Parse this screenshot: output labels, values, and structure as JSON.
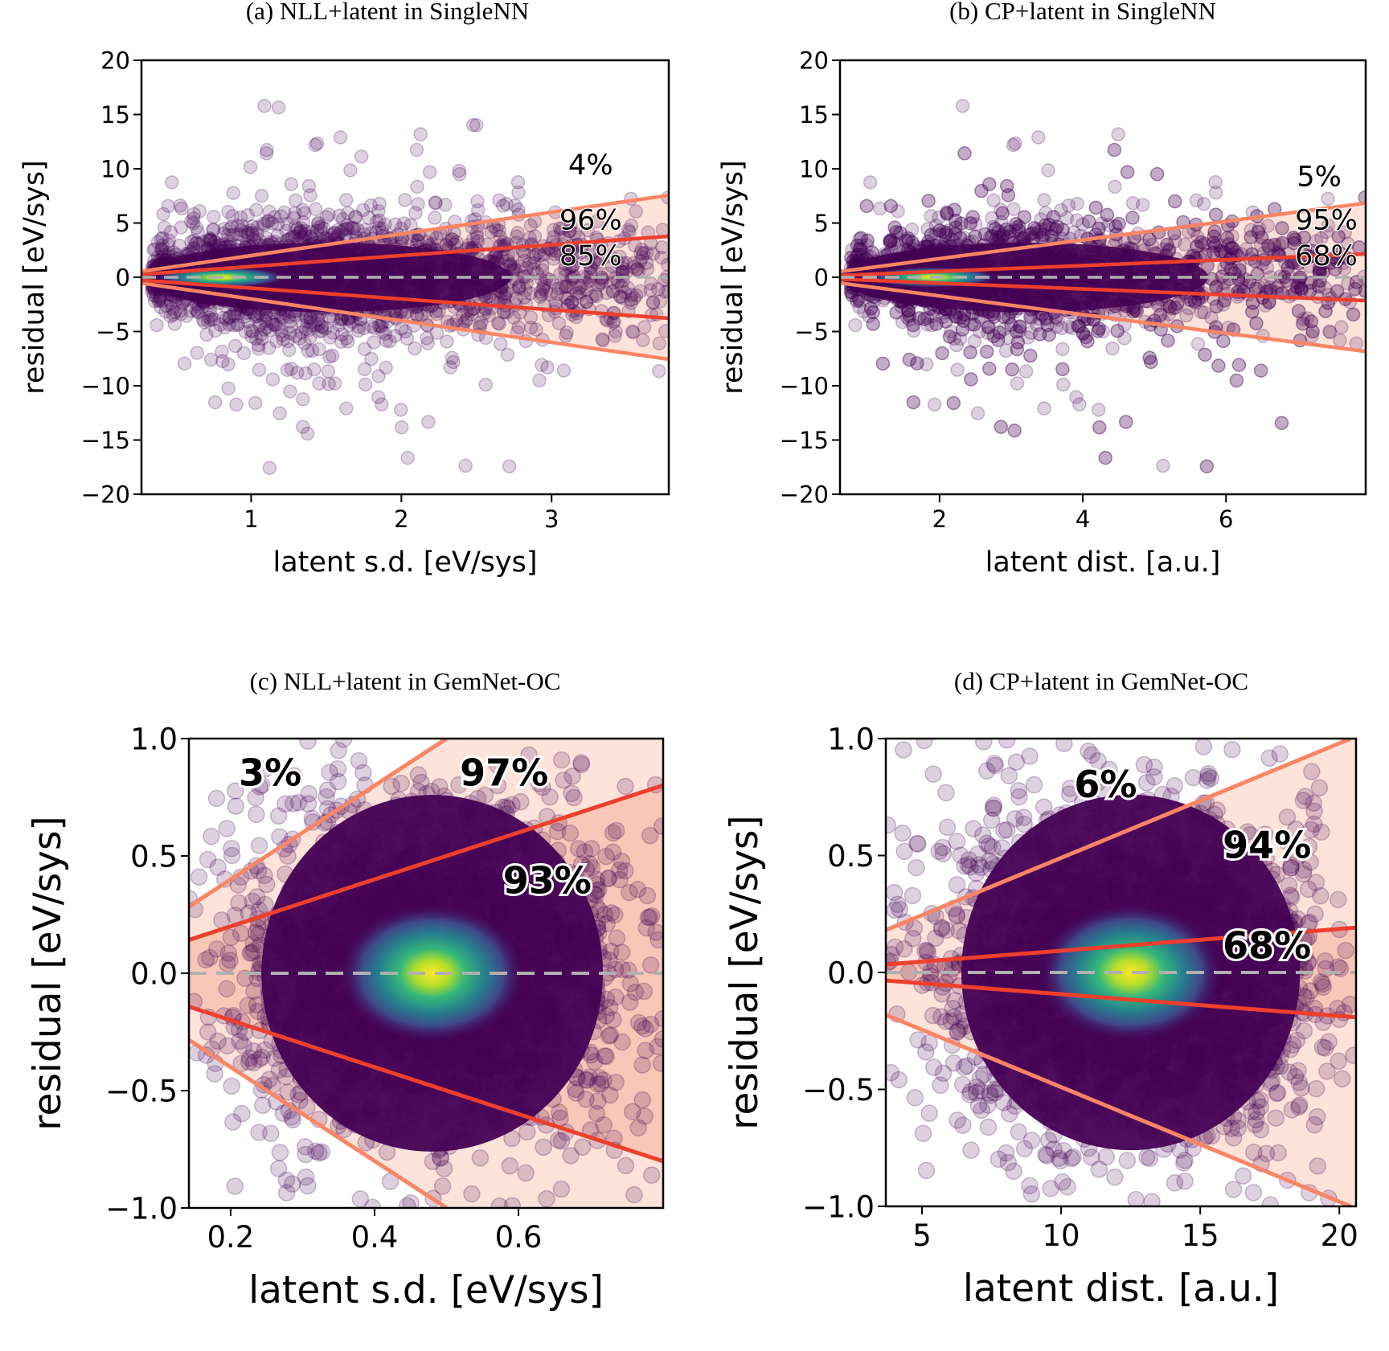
{
  "colors": {
    "outer_band": "#fa8564",
    "inner_band": "#ee3f2c",
    "outer_fill": "#fde3da",
    "inner_fill": "#f8bfae",
    "points": "#440154",
    "zero_line": "#b0b0b0"
  },
  "chart_data": [
    {
      "type": "scatter",
      "title": "(a) NLL+latent in SingleNN",
      "xlabel": "latent s.d. [eV/sys]",
      "ylabel": "residual [eV/sys]",
      "xlim": [
        0.27,
        3.78
      ],
      "ylim": [
        -20,
        20
      ],
      "xticks": [
        1,
        2,
        3
      ],
      "yticks": [
        20,
        15,
        10,
        5,
        0,
        -5,
        -10,
        -15,
        -20
      ],
      "ytick_labels": [
        "20",
        "15",
        "10",
        "5",
        "0",
        "−5",
        "−10",
        "−15",
        "−20"
      ],
      "density_peak_x": 0.8,
      "bands": {
        "outer_slope": 2.0,
        "inner_slope": 1.0
      },
      "annotations": [
        {
          "text": "4%",
          "role": "outside",
          "x": 3.26,
          "y": 9.5
        },
        {
          "text": "96%",
          "role": "outer",
          "x": 3.26,
          "y": 4.4
        },
        {
          "text": "85%",
          "role": "inner",
          "x": 3.26,
          "y": 1.1
        }
      ]
    },
    {
      "type": "scatter",
      "title": "(b) CP+latent in SingleNN",
      "xlabel": "latent dist. [a.u.]",
      "ylabel": "residual [eV/sys]",
      "xlim": [
        0.61,
        7.95
      ],
      "ylim": [
        -20,
        20
      ],
      "xticks": [
        2,
        4,
        6
      ],
      "yticks": [
        20,
        15,
        10,
        5,
        0,
        -5,
        -10,
        -15,
        -20
      ],
      "ytick_labels": [
        "20",
        "15",
        "10",
        "5",
        "0",
        "−5",
        "−10",
        "−15",
        "−20"
      ],
      "density_peak_x": 1.9,
      "bands": {
        "outer_slope": 0.86,
        "inner_slope": 0.27
      },
      "annotations": [
        {
          "text": "5%",
          "role": "outside",
          "x": 7.3,
          "y": 8.4
        },
        {
          "text": "95%",
          "role": "outer",
          "x": 7.4,
          "y": 4.4
        },
        {
          "text": "68%",
          "role": "inner",
          "x": 7.4,
          "y": 1.1
        }
      ]
    },
    {
      "type": "scatter",
      "title": "(c) NLL+latent in GemNet-OC",
      "xlabel": "latent s.d. [eV/sys]",
      "ylabel": "residual [eV/sys]",
      "xlim": [
        0.142,
        0.801
      ],
      "ylim": [
        -1.0,
        1.0
      ],
      "xticks": [
        0.2,
        0.4,
        0.6
      ],
      "xtick_labels": [
        "0.2",
        "0.4",
        "0.6"
      ],
      "yticks": [
        1.0,
        0.5,
        0.0,
        -0.5,
        -1.0
      ],
      "ytick_labels": [
        "1.0",
        "0.5",
        "0.0",
        "−0.5",
        "−1.0"
      ],
      "density_peak_x": 0.48,
      "bands": {
        "outer_slope": 2.0,
        "inner_slope": 1.0
      },
      "annotations": [
        {
          "text": "3%",
          "role": "outside",
          "x": 0.255,
          "y": 0.8
        },
        {
          "text": "97%",
          "role": "outer",
          "x": 0.58,
          "y": 0.8
        },
        {
          "text": "93%",
          "role": "inner",
          "x": 0.64,
          "y": 0.34
        }
      ]
    },
    {
      "type": "scatter",
      "title": "(d) CP+latent in GemNet-OC",
      "xlabel": "latent dist. [a.u.]",
      "ylabel": "residual [eV/sys]",
      "xlim": [
        3.7,
        20.6
      ],
      "ylim": [
        -1.0,
        1.0
      ],
      "xticks": [
        5,
        10,
        15,
        20
      ],
      "yticks": [
        1.0,
        0.5,
        0.0,
        -0.5,
        -1.0
      ],
      "ytick_labels": [
        "1.0",
        "0.5",
        "0.0",
        "−0.5",
        "−1.0"
      ],
      "density_peak_x": 12.5,
      "bands": {
        "outer_slope": 0.049,
        "inner_slope": 0.0093
      },
      "annotations": [
        {
          "text": "6%",
          "role": "outside",
          "x": 11.6,
          "y": 0.75
        },
        {
          "text": "94%",
          "role": "outer",
          "x": 17.4,
          "y": 0.49
        },
        {
          "text": "68%",
          "role": "inner",
          "x": 17.4,
          "y": 0.06
        }
      ]
    }
  ]
}
